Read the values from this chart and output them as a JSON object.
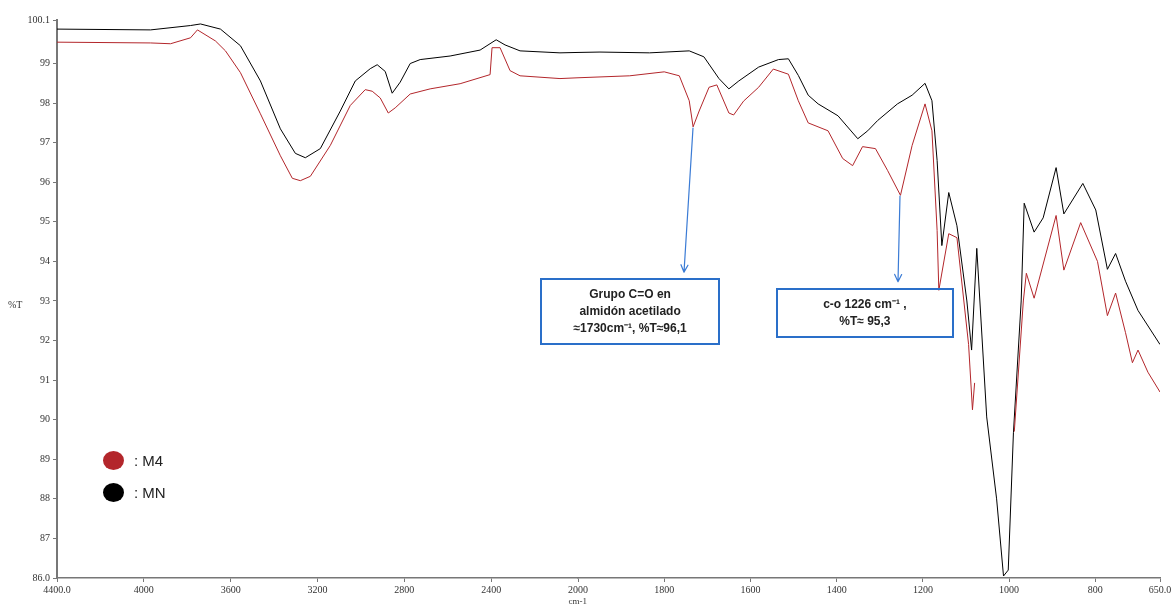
{
  "chart_data": [
    {
      "type": "line",
      "xlabel": "cm-1",
      "ylabel": "%T",
      "xlim": [
        4400,
        2000
      ],
      "ylim": [
        86.0,
        100.1
      ],
      "xticks": [
        {
          "value": 4400,
          "label": "4400.0"
        },
        4000,
        3600,
        3200,
        2800,
        2400
      ],
      "yticks": [
        {
          "value": 86,
          "label": "86.0"
        },
        87,
        88,
        89,
        90,
        91,
        92,
        93,
        94,
        95,
        96,
        97,
        98,
        99,
        {
          "value": 100.1,
          "label": "100.1"
        }
      ],
      "legend": "bottom left",
      "series": [
        {
          "name": ": M4",
          "color": "#b3262b",
          "x": [
            4400,
            3969,
            3877,
            3785,
            3753,
            3670,
            3624,
            3555,
            3463,
            3371,
            3316,
            3279,
            3233,
            3141,
            3049,
            2980,
            2948,
            2911,
            2874,
            2842,
            2773,
            2681,
            2543,
            2405,
            2396,
            2359,
            2313,
            2267,
            2083,
            2000
          ],
          "values": [
            99.54,
            99.52,
            99.5,
            99.65,
            99.85,
            99.57,
            99.32,
            98.77,
            97.73,
            96.67,
            96.1,
            96.04,
            96.15,
            96.93,
            97.94,
            98.34,
            98.3,
            98.13,
            97.75,
            97.88,
            98.23,
            98.36,
            98.49,
            98.72,
            99.4,
            99.4,
            98.82,
            98.69,
            98.62,
            98.64
          ]
        },
        {
          "name": ": MN",
          "color": "#000000",
          "x": [
            4400,
            3969,
            3785,
            3739,
            3647,
            3555,
            3463,
            3371,
            3302,
            3256,
            3187,
            3095,
            3026,
            2957,
            2925,
            2888,
            2856,
            2819,
            2773,
            2727,
            2589,
            2451,
            2377,
            2336,
            2267,
            2083,
            2000
          ],
          "values": [
            99.87,
            99.85,
            99.96,
            100.0,
            99.87,
            99.45,
            98.56,
            97.35,
            96.73,
            96.62,
            96.85,
            97.8,
            98.56,
            98.87,
            98.97,
            98.8,
            98.25,
            98.53,
            99.0,
            99.1,
            99.19,
            99.34,
            99.6,
            99.47,
            99.32,
            99.27,
            99.28
          ]
        }
      ]
    },
    {
      "type": "line",
      "xlim": [
        2000,
        650
      ],
      "ylim": [
        86.0,
        100.1
      ],
      "xticks": [
        2000,
        1800,
        1600,
        1400,
        1200,
        1000,
        800,
        {
          "value": 650,
          "label": "650.0"
        }
      ],
      "tick_labels": "x",
      "series": [
        {
          "color": "#b3262b",
          "x": [
            2000,
            1880,
            1800,
            1765,
            1742,
            1733,
            1719,
            1696,
            1678,
            1650,
            1639,
            1616,
            1581,
            1547,
            1512,
            1489,
            1466,
            1420,
            1386,
            1363,
            1340,
            1310,
            1282,
            1252,
            1225,
            1195,
            1179,
            1167,
            1163,
            1140,
            1121,
            1094,
            1085,
            1080,
            1041,
            995,
            988,
            967,
            960,
            942,
            891,
            873,
            834,
            795,
            772,
            753,
            730,
            714,
            701,
            678,
            650
          ],
          "values": [
            98.64,
            98.69,
            98.79,
            98.69,
            98.06,
            97.4,
            97.8,
            98.4,
            98.46,
            97.75,
            97.7,
            98.05,
            98.4,
            98.86,
            98.73,
            98.06,
            97.5,
            97.3,
            96.6,
            96.42,
            96.9,
            96.85,
            96.3,
            95.67,
            96.93,
            97.98,
            97.3,
            94.78,
            93.27,
            94.7,
            94.6,
            91.9,
            90.25,
            90.93,
            null,
            null,
            89.7,
            93.0,
            93.7,
            93.07,
            95.16,
            93.78,
            94.98,
            94.0,
            92.63,
            93.2,
            92.2,
            91.44,
            91.76,
            91.2,
            90.7
          ]
        },
        {
          "color": "#000000",
          "x": [
            2000,
            1949,
            1834,
            1742,
            1708,
            1673,
            1650,
            1627,
            1581,
            1535,
            1512,
            1489,
            1466,
            1443,
            1397,
            1351,
            1328,
            1305,
            1259,
            1225,
            1195,
            1179,
            1167,
            1156,
            1140,
            1121,
            1098,
            1087,
            1075,
            1052,
            1029,
            1013,
            1002,
            990,
            972,
            965,
            942,
            921,
            891,
            873,
            829,
            799,
            772,
            753,
            730,
            701,
            650
          ],
          "values": [
            99.28,
            99.29,
            99.27,
            99.32,
            99.17,
            98.62,
            98.36,
            98.56,
            98.91,
            99.1,
            99.12,
            98.7,
            98.2,
            97.98,
            97.68,
            97.1,
            97.3,
            97.56,
            97.98,
            98.2,
            98.5,
            98.06,
            96.55,
            94.4,
            95.74,
            94.9,
            93.0,
            91.76,
            94.33,
            90.07,
            88.0,
            86.05,
            86.2,
            89.67,
            93.0,
            95.47,
            94.74,
            95.1,
            96.37,
            95.2,
            95.97,
            95.3,
            93.8,
            94.2,
            93.5,
            92.76,
            91.9
          ]
        }
      ],
      "annotations": [
        {
          "text": "Grupo C=O en\nalmidón acetilado\n≈1730cm⁻¹, %T≈96,1",
          "x": 1733,
          "y": 97.4
        },
        {
          "text": "c-o 1226 cm⁻¹ ,\n%T≈ 95,3",
          "x": 1252,
          "y": 95.67
        }
      ]
    }
  ]
}
